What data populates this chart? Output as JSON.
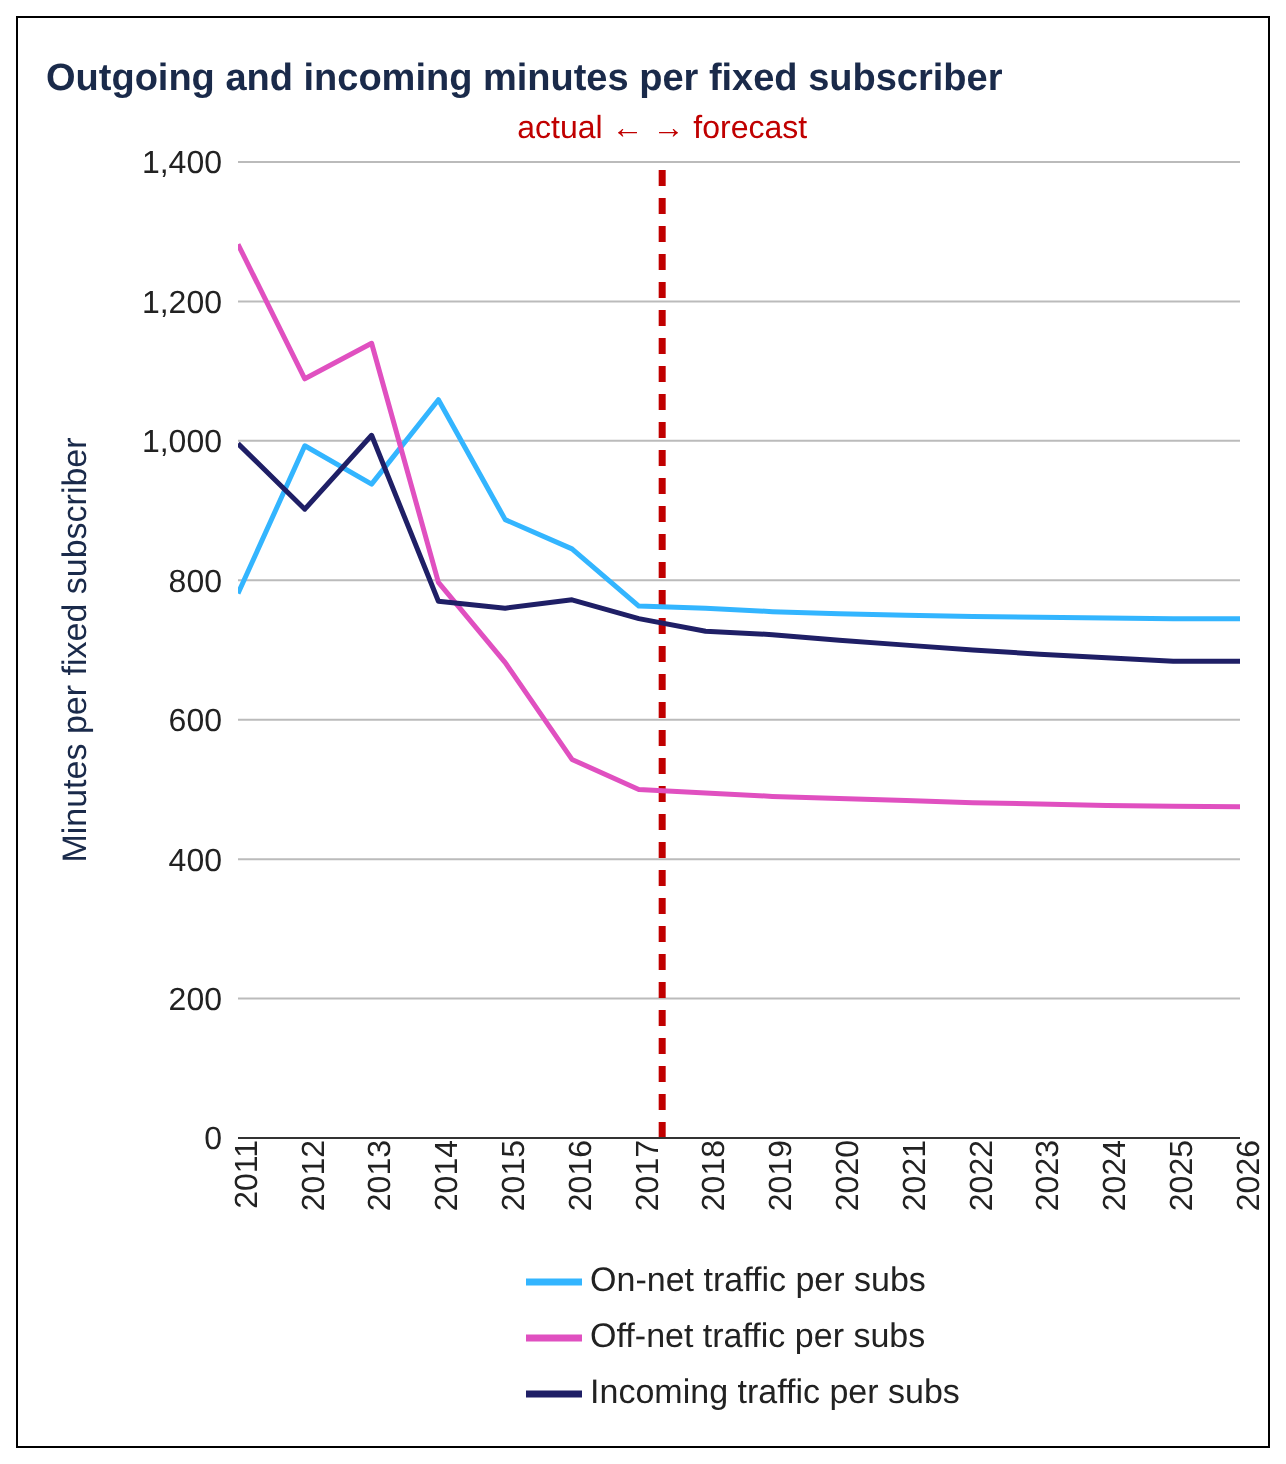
{
  "chart_data": {
    "type": "line",
    "title": "Outgoing and incoming minutes per fixed subscriber",
    "ylabel": "Minutes per fixed subscriber",
    "x": [
      2011,
      2012,
      2013,
      2014,
      2015,
      2016,
      2017,
      2018,
      2019,
      2020,
      2021,
      2022,
      2023,
      2024,
      2025,
      2026
    ],
    "series": [
      {
        "name": "On-net traffic per subs",
        "color": "#33b5ff",
        "values": [
          781,
          993,
          938,
          1059,
          887,
          845,
          763,
          760,
          755,
          752,
          750,
          748,
          747,
          746,
          745,
          745
        ]
      },
      {
        "name": "Off-net traffic per subs",
        "color": "#e050c0",
        "values": [
          1282,
          1089,
          1140,
          797,
          682,
          543,
          500,
          495,
          490,
          487,
          484,
          481,
          479,
          477,
          476,
          475
        ]
      },
      {
        "name": "Incoming traffic per subs",
        "color": "#1f1f66",
        "values": [
          996,
          902,
          1008,
          770,
          760,
          772,
          745,
          727,
          722,
          714,
          707,
          700,
          694,
          689,
          684,
          684
        ]
      }
    ],
    "xlim": [
      2011,
      2026
    ],
    "xticks": [
      2011,
      2012,
      2013,
      2014,
      2015,
      2016,
      2017,
      2018,
      2019,
      2020,
      2021,
      2022,
      2023,
      2024,
      2025,
      2026
    ],
    "ylim": [
      0,
      1400
    ],
    "yticks": [
      0,
      200,
      400,
      600,
      800,
      {
        "value": 1000,
        "label": "1,000"
      },
      {
        "value": 1200,
        "label": "1,200"
      },
      {
        "value": 1400,
        "label": "1,400"
      }
    ],
    "grid": "y",
    "legend": "bottom",
    "marker": "none",
    "line_style": "solid",
    "ref_lines": [
      {
        "axis": "x",
        "value": 2017.35,
        "label": "actual ← → forecast",
        "color": "#c00000",
        "line_style": "dashed"
      }
    ]
  }
}
